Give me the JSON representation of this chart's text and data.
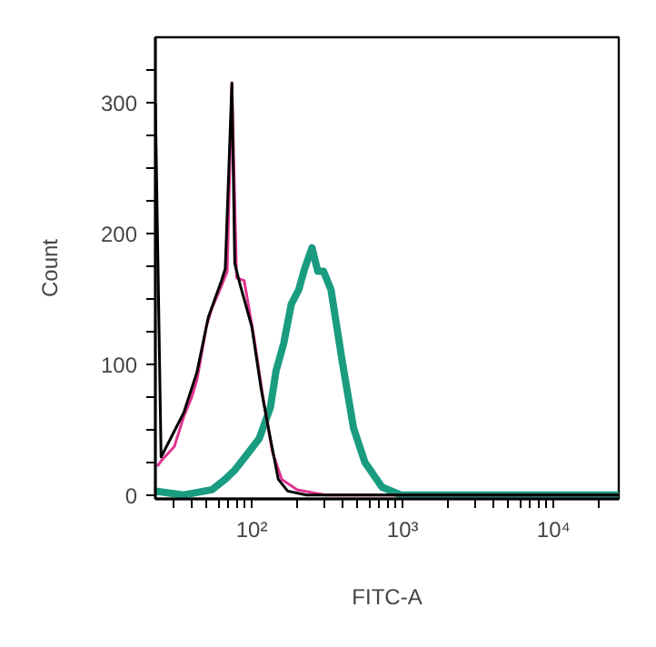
{
  "chart_data": {
    "type": "line",
    "xlabel": "FITC-A",
    "ylabel": "Count",
    "log": "x",
    "grid": false,
    "marker": "none",
    "line_style": "solid",
    "xlim": [
      23,
      27000
    ],
    "ylim": [
      -3,
      350
    ],
    "xticks": [
      {
        "value": 30,
        "label": null
      },
      {
        "value": 40,
        "label": null
      },
      {
        "value": 50,
        "label": null
      },
      {
        "value": 60,
        "label": null
      },
      {
        "value": 70,
        "label": null
      },
      {
        "value": 80,
        "label": null
      },
      {
        "value": 90,
        "label": null
      },
      {
        "value": 100,
        "label": "10²"
      },
      {
        "value": 200,
        "label": null
      },
      {
        "value": 300,
        "label": null
      },
      {
        "value": 400,
        "label": null
      },
      {
        "value": 500,
        "label": null
      },
      {
        "value": 600,
        "label": null
      },
      {
        "value": 700,
        "label": null
      },
      {
        "value": 800,
        "label": null
      },
      {
        "value": 900,
        "label": null
      },
      {
        "value": 1000,
        "label": "10³"
      },
      {
        "value": 2000,
        "label": null
      },
      {
        "value": 3000,
        "label": null
      },
      {
        "value": 4000,
        "label": null
      },
      {
        "value": 5000,
        "label": null
      },
      {
        "value": 6000,
        "label": null
      },
      {
        "value": 7000,
        "label": null
      },
      {
        "value": 8000,
        "label": null
      },
      {
        "value": 9000,
        "label": null
      },
      {
        "value": 10000,
        "label": "10⁴"
      },
      {
        "value": 20000,
        "label": null
      }
    ],
    "yticks": [
      0,
      {
        "value": 25,
        "label": null
      },
      {
        "value": 50,
        "label": null
      },
      {
        "value": 75,
        "label": null
      },
      100,
      {
        "value": 125,
        "label": null
      },
      {
        "value": 150,
        "label": null
      },
      {
        "value": 175,
        "label": null
      },
      200,
      {
        "value": 225,
        "label": null
      },
      {
        "value": 250,
        "label": null
      },
      {
        "value": 275,
        "label": null
      },
      300,
      {
        "value": 325,
        "label": null
      }
    ],
    "series": [
      {
        "color": "#1a9c80",
        "x": [
          23,
          35.5,
          54.6,
          66.8,
          77.2,
          91.7,
          112,
          133,
          145,
          163,
          183,
          205,
          224,
          251,
          274,
          299,
          335,
          398,
          473,
          562,
          729,
          972,
          3000,
          27000
        ],
        "values": [
          3,
          0,
          4,
          12,
          19,
          30,
          43,
          67,
          95,
          116,
          146,
          157,
          173,
          189,
          171,
          171,
          157,
          102,
          51,
          25,
          6,
          0,
          0,
          0
        ]
      },
      {
        "color": "#e0338f",
        "x": [
          23.7,
          25.1,
          30.7,
          35.5,
          39.8,
          43.4,
          50.1,
          54.6,
          63.1,
          68.8,
          73.9,
          79.4,
          89.1,
          103,
          119,
          137,
          158,
          200,
          307,
          27000
        ],
        "values": [
          22,
          26,
          37,
          60,
          74,
          88,
          129,
          143,
          160,
          171,
          315,
          166,
          164,
          122,
          74,
          33,
          12,
          4,
          0,
          0
        ]
      },
      {
        "color": "#000000",
        "x": [
          23,
          25.1,
          35.5,
          43.4,
          51.6,
          63.1,
          66.8,
          73.9,
          77.2,
          84.1,
          100,
          115.5,
          133,
          150,
          173,
          230,
          27000
        ],
        "values": [
          300,
          29,
          63,
          94,
          136,
          164,
          173,
          315,
          177,
          160,
          129,
          81,
          43,
          12,
          3,
          0,
          0
        ]
      }
    ]
  }
}
